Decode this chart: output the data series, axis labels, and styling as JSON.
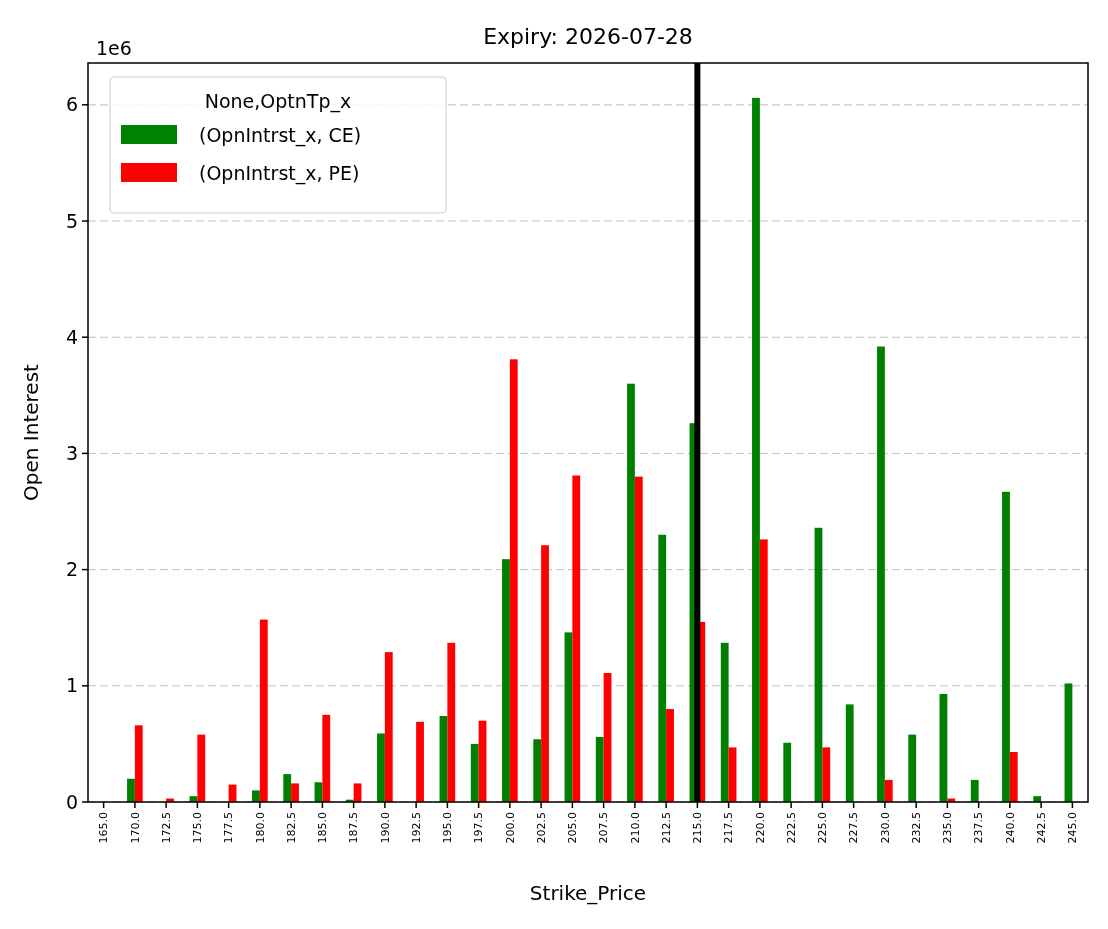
{
  "chart_data": {
    "type": "bar",
    "title": "Expiry: 2026-07-28",
    "xlabel": "Strike_Price",
    "ylabel": "Open Interest",
    "legend_title": "None,OptnTp_x",
    "categories": [
      "165.0",
      "170.0",
      "172.5",
      "175.0",
      "177.5",
      "180.0",
      "182.5",
      "185.0",
      "187.5",
      "190.0",
      "192.5",
      "195.0",
      "197.5",
      "200.0",
      "202.5",
      "205.0",
      "207.5",
      "210.0",
      "212.5",
      "215.0",
      "217.5",
      "220.0",
      "222.5",
      "225.0",
      "227.5",
      "230.0",
      "232.5",
      "235.0",
      "237.5",
      "240.0",
      "242.5",
      "245.0"
    ],
    "series": [
      {
        "name": "(OpnIntrst_x, CE)",
        "color": "#008000",
        "values": [
          0,
          0.2,
          0,
          0.05,
          0,
          0.1,
          0.24,
          0.17,
          0.02,
          0.59,
          0,
          0.74,
          0.5,
          2.09,
          0.54,
          1.46,
          0.56,
          3.6,
          2.3,
          3.26,
          1.37,
          6.06,
          0.51,
          2.36,
          0.84,
          3.92,
          0.58,
          0.93,
          0.19,
          2.67,
          0.05,
          1.02
        ]
      },
      {
        "name": "(OpnIntrst_x, PE)",
        "color": "#ff0000",
        "values": [
          0,
          0.66,
          0.03,
          0.58,
          0.15,
          1.57,
          0.16,
          0.75,
          0.16,
          1.29,
          0.69,
          1.37,
          0.7,
          3.81,
          2.21,
          2.81,
          1.11,
          2.8,
          0.8,
          1.55,
          0.47,
          2.26,
          0,
          0.47,
          0,
          0.19,
          0,
          0.03,
          0,
          0.43,
          0,
          0
        ]
      }
    ],
    "ylim": [
      0,
      6.36
    ],
    "yticks": [
      0,
      1,
      2,
      3,
      4,
      5,
      6
    ],
    "grid": "y",
    "legend": "top left",
    "ref_lines": [
      {
        "axis": "x",
        "value": "215.0",
        "color": "#000000"
      }
    ],
    "annotations": [
      "1e6"
    ]
  }
}
